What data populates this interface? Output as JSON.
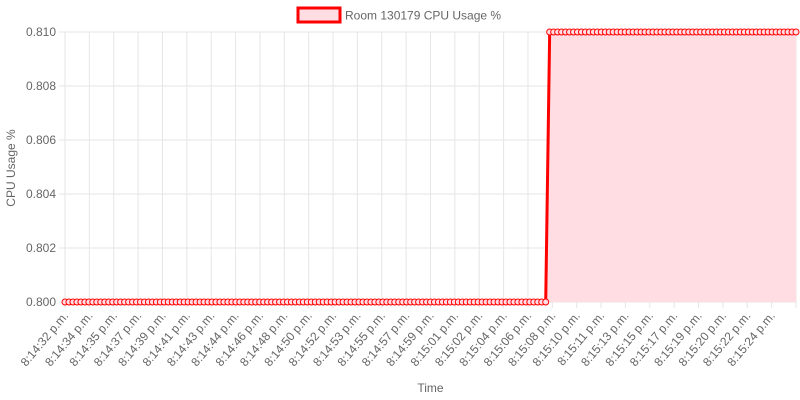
{
  "chart_data": {
    "type": "line",
    "legend_position": "top",
    "grid": true,
    "filled": true,
    "xlabel": "Time",
    "ylabel": "CPU Usage %",
    "ylim": [
      0.8,
      0.81
    ],
    "y_ticks": [
      "0.810",
      "0.808",
      "0.806",
      "0.804",
      "0.802",
      "0.800"
    ],
    "x_tick_labels": [
      "8:14:32 p.m.",
      "8:14:34 p.m.",
      "8:14:35 p.m.",
      "8:14:37 p.m.",
      "8:14:39 p.m.",
      "8:14:41 p.m.",
      "8:14:43 p.m.",
      "8:14:44 p.m.",
      "8:14:46 p.m.",
      "8:14:48 p.m.",
      "8:14:50 p.m.",
      "8:14:52 p.m.",
      "8:14:53 p.m.",
      "8:14:55 p.m.",
      "8:14:57 p.m.",
      "8:14:59 p.m.",
      "8:15:01 p.m.",
      "8:15:02 p.m.",
      "8:15:04 p.m.",
      "8:15:06 p.m.",
      "8:15:08 p.m.",
      "8:15:10 p.m.",
      "8:15:11 p.m.",
      "8:15:13 p.m.",
      "8:15:15 p.m.",
      "8:15:17 p.m.",
      "8:15:19 p.m.",
      "8:15:20 p.m.",
      "8:15:22 p.m.",
      "8:15:24 p.m."
    ],
    "series": [
      {
        "name": "Room 130179 CPU Usage %",
        "line_color": "#ff0000",
        "fill_color": "#ffdde3",
        "values": [
          0.8,
          0.8,
          0.8,
          0.8,
          0.8,
          0.8,
          0.8,
          0.8,
          0.8,
          0.8,
          0.8,
          0.8,
          0.8,
          0.8,
          0.8,
          0.8,
          0.8,
          0.8,
          0.8,
          0.8,
          0.8,
          0.8,
          0.8,
          0.8,
          0.8,
          0.8,
          0.8,
          0.8,
          0.8,
          0.8,
          0.8,
          0.8,
          0.8,
          0.8,
          0.8,
          0.8,
          0.8,
          0.8,
          0.8,
          0.8,
          0.8,
          0.8,
          0.8,
          0.8,
          0.8,
          0.8,
          0.8,
          0.8,
          0.8,
          0.8,
          0.8,
          0.8,
          0.8,
          0.8,
          0.8,
          0.8,
          0.8,
          0.8,
          0.8,
          0.8,
          0.8,
          0.8,
          0.8,
          0.8,
          0.8,
          0.8,
          0.8,
          0.8,
          0.8,
          0.8,
          0.8,
          0.8,
          0.8,
          0.8,
          0.8,
          0.8,
          0.8,
          0.8,
          0.8,
          0.8,
          0.8,
          0.8,
          0.8,
          0.8,
          0.8,
          0.8,
          0.8,
          0.8,
          0.8,
          0.8,
          0.8,
          0.8,
          0.8,
          0.8,
          0.8,
          0.8,
          0.8,
          0.8,
          0.8,
          0.8,
          0.8,
          0.8,
          0.8,
          0.8,
          0.8,
          0.8,
          0.8,
          0.8,
          0.8,
          0.8,
          0.8,
          0.8,
          0.8,
          0.8,
          0.8,
          0.8,
          0.8,
          0.8,
          0.8,
          0.8,
          0.8,
          0.8,
          0.81,
          0.81,
          0.81,
          0.81,
          0.81,
          0.81,
          0.81,
          0.81,
          0.81,
          0.81,
          0.81,
          0.81,
          0.81,
          0.81,
          0.81,
          0.81,
          0.81,
          0.81,
          0.81,
          0.81,
          0.81,
          0.81,
          0.81,
          0.81,
          0.81,
          0.81,
          0.81,
          0.81,
          0.81,
          0.81,
          0.81,
          0.81,
          0.81,
          0.81,
          0.81,
          0.81,
          0.81,
          0.81,
          0.81,
          0.81,
          0.81,
          0.81,
          0.81,
          0.81,
          0.81,
          0.81,
          0.81,
          0.81,
          0.81,
          0.81,
          0.81,
          0.81,
          0.81,
          0.81,
          0.81,
          0.81,
          0.81,
          0.81,
          0.81,
          0.81,
          0.81,
          0.81,
          0.81
        ]
      }
    ]
  }
}
